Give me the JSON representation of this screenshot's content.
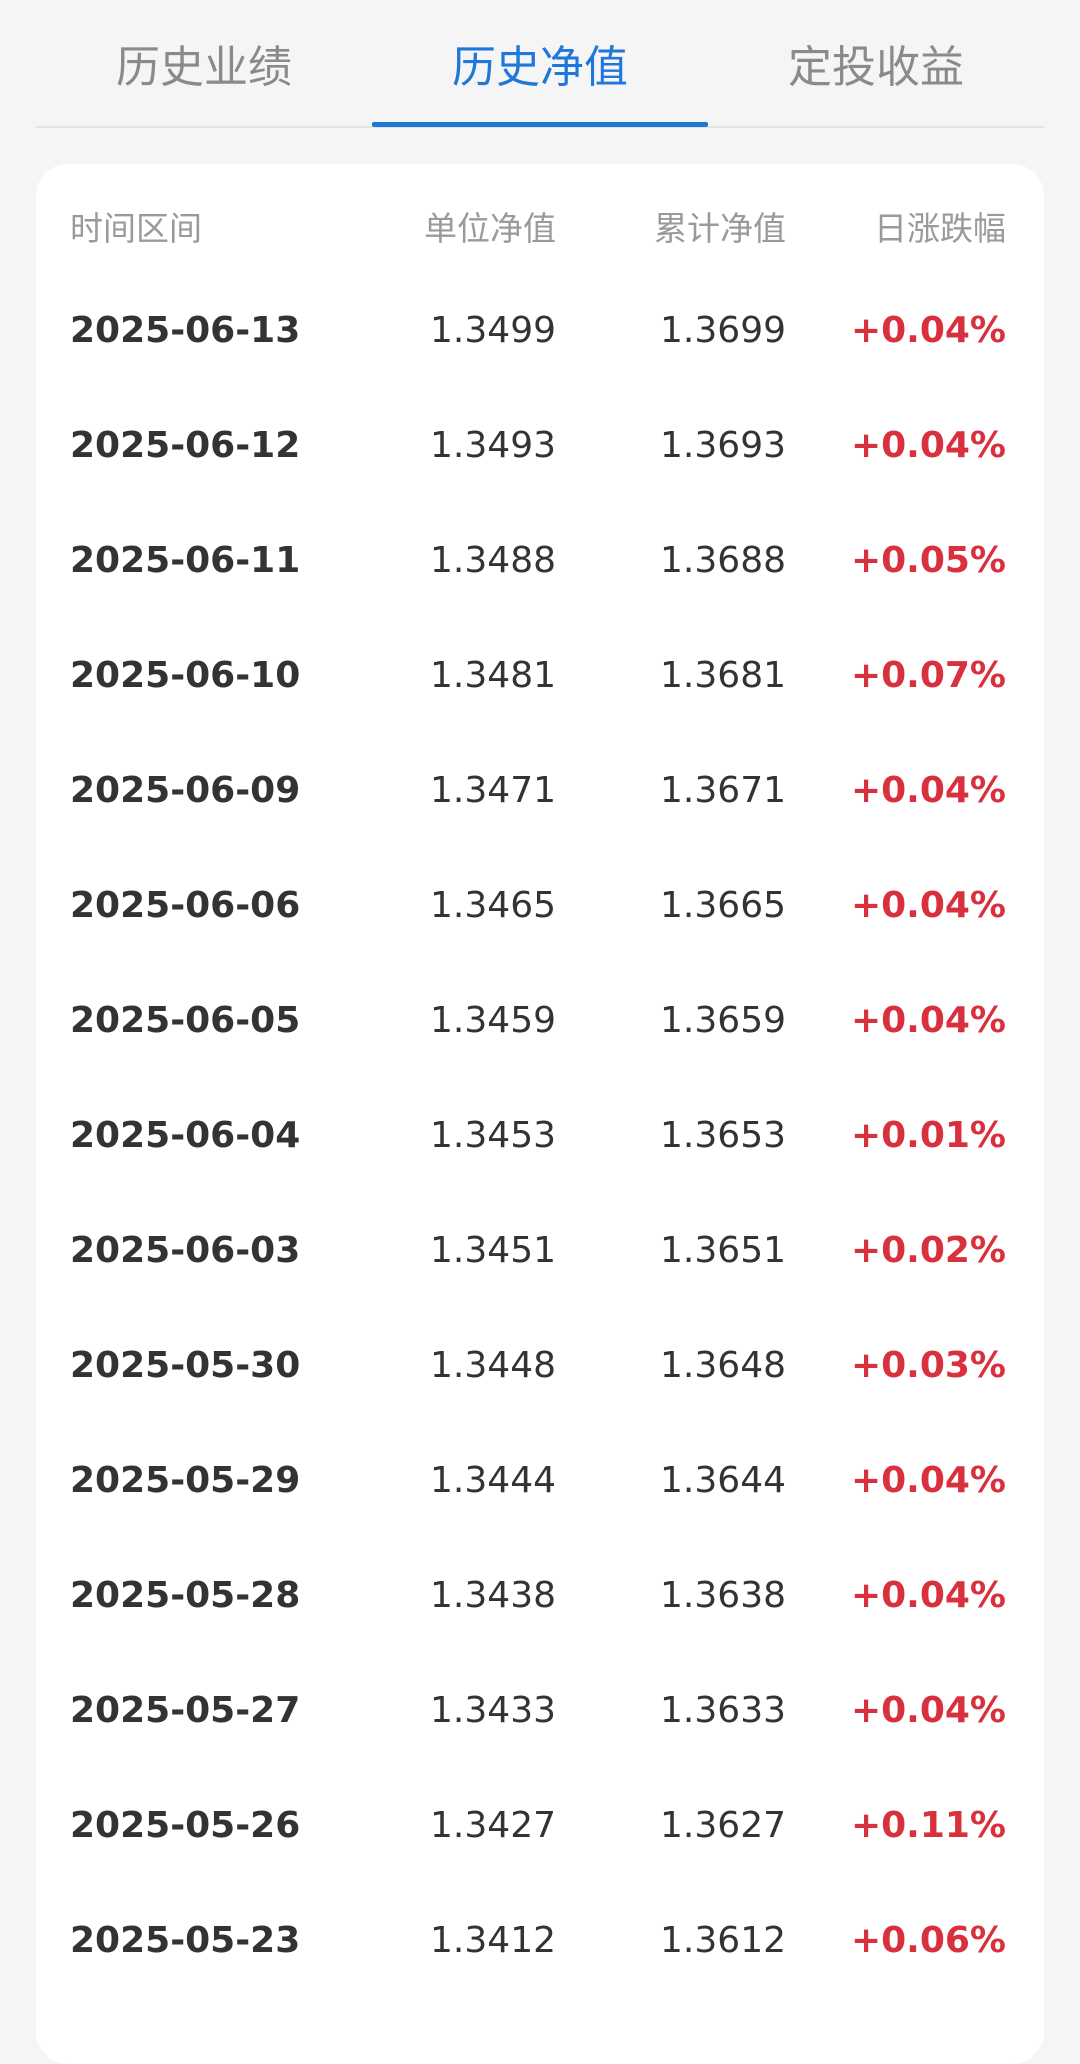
{
  "tabs": [
    {
      "label": "历史业绩"
    },
    {
      "label": "历史净值"
    },
    {
      "label": "定投收益"
    }
  ],
  "active_tab": "历史净值",
  "table": {
    "headers": [
      "时间区间",
      "单位净值",
      "累计净值",
      "日涨跌幅"
    ],
    "rows": [
      {
        "date": "2025-06-13",
        "unit_nav": "1.3499",
        "acc_nav": "1.3699",
        "change": "+0.04%"
      },
      {
        "date": "2025-06-12",
        "unit_nav": "1.3493",
        "acc_nav": "1.3693",
        "change": "+0.04%"
      },
      {
        "date": "2025-06-11",
        "unit_nav": "1.3488",
        "acc_nav": "1.3688",
        "change": "+0.05%"
      },
      {
        "date": "2025-06-10",
        "unit_nav": "1.3481",
        "acc_nav": "1.3681",
        "change": "+0.07%"
      },
      {
        "date": "2025-06-09",
        "unit_nav": "1.3471",
        "acc_nav": "1.3671",
        "change": "+0.04%"
      },
      {
        "date": "2025-06-06",
        "unit_nav": "1.3465",
        "acc_nav": "1.3665",
        "change": "+0.04%"
      },
      {
        "date": "2025-06-05",
        "unit_nav": "1.3459",
        "acc_nav": "1.3659",
        "change": "+0.04%"
      },
      {
        "date": "2025-06-04",
        "unit_nav": "1.3453",
        "acc_nav": "1.3653",
        "change": "+0.01%"
      },
      {
        "date": "2025-06-03",
        "unit_nav": "1.3451",
        "acc_nav": "1.3651",
        "change": "+0.02%"
      },
      {
        "date": "2025-05-30",
        "unit_nav": "1.3448",
        "acc_nav": "1.3648",
        "change": "+0.03%"
      },
      {
        "date": "2025-05-29",
        "unit_nav": "1.3444",
        "acc_nav": "1.3644",
        "change": "+0.04%"
      },
      {
        "date": "2025-05-28",
        "unit_nav": "1.3438",
        "acc_nav": "1.3638",
        "change": "+0.04%"
      },
      {
        "date": "2025-05-27",
        "unit_nav": "1.3433",
        "acc_nav": "1.3633",
        "change": "+0.04%"
      },
      {
        "date": "2025-05-26",
        "unit_nav": "1.3427",
        "acc_nav": "1.3627",
        "change": "+0.11%"
      },
      {
        "date": "2025-05-23",
        "unit_nav": "1.3412",
        "acc_nav": "1.3612",
        "change": "+0.06%"
      }
    ]
  },
  "colors": {
    "accent": "#1f78d9",
    "positive": "#d9303e"
  }
}
